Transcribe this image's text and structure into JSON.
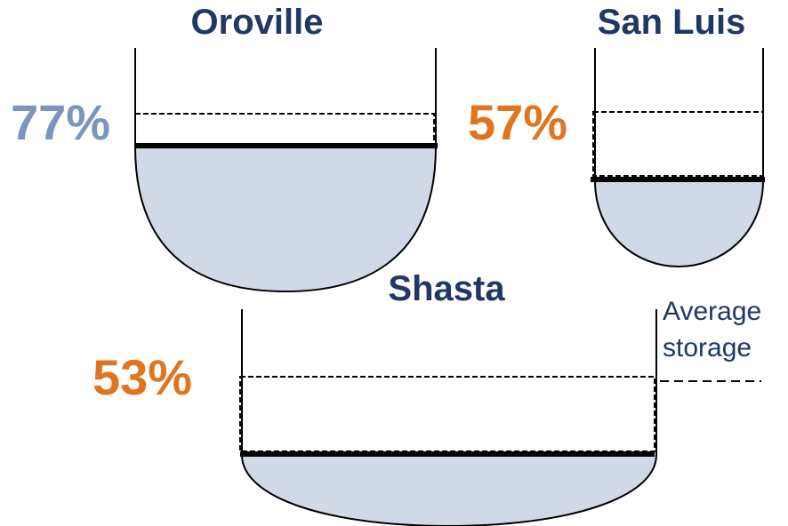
{
  "colors": {
    "title": "#1f3864",
    "water": "#d1d9e6",
    "outline": "#000000",
    "pct_above_average": "#7a96bf",
    "pct_below_average": "#e07520",
    "legend_text": "#1f3864"
  },
  "reservoirs": [
    {
      "name": "Oroville",
      "percent_label": "77%",
      "percent_of_capacity": 77,
      "status": "above-average"
    },
    {
      "name": "San Luis",
      "percent_label": "57%",
      "percent_of_capacity": 57,
      "status": "below-average"
    },
    {
      "name": "Shasta",
      "percent_label": "53%",
      "percent_of_capacity": 53,
      "status": "below-average"
    }
  ],
  "legend": {
    "line1": "Average",
    "line2": "storage"
  }
}
